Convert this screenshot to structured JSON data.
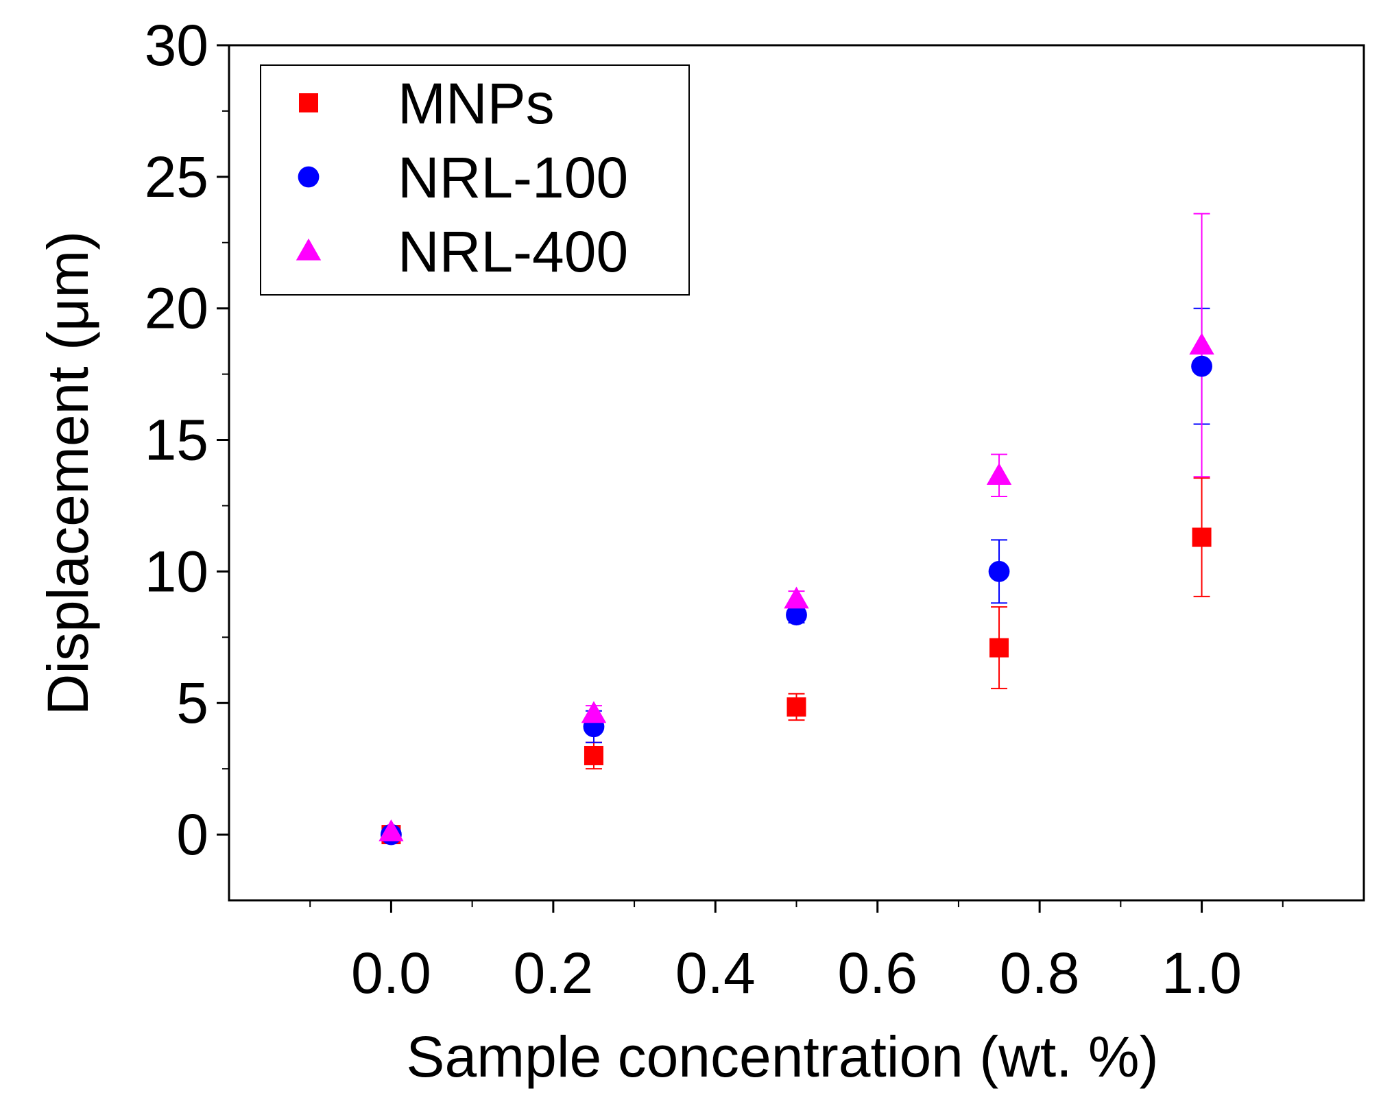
{
  "chart_data": {
    "type": "scatter",
    "title": "",
    "xlabel": "Sample concentration (wt. %)",
    "ylabel": "Displacement (μm)",
    "xlim": [
      -0.2,
      1.2
    ],
    "ylim": [
      -2.5,
      30
    ],
    "x_ticks": [
      0.0,
      0.2,
      0.4,
      0.6,
      0.8,
      1.0
    ],
    "x_tick_labels": [
      "0.0",
      "0.2",
      "0.4",
      "0.6",
      "0.8",
      "1.0"
    ],
    "y_ticks": [
      0,
      5,
      10,
      15,
      20,
      25,
      30
    ],
    "y_tick_labels": [
      "0",
      "5",
      "10",
      "15",
      "20",
      "25",
      "30"
    ],
    "grid": false,
    "legend_position": "top-left",
    "series": [
      {
        "name": "MNPs",
        "marker": "square",
        "color": "#ff0000",
        "x": [
          0.0,
          0.25,
          0.5,
          0.75,
          1.0
        ],
        "y": [
          0.0,
          3.0,
          4.85,
          7.1,
          11.3
        ],
        "err_low": [
          0.0,
          0.5,
          0.5,
          1.55,
          2.25
        ],
        "err_high": [
          0.0,
          0.5,
          0.5,
          1.55,
          2.25
        ]
      },
      {
        "name": "NRL-100",
        "marker": "circle",
        "color": "#0000ff",
        "x": [
          0.0,
          0.25,
          0.5,
          0.75,
          1.0
        ],
        "y": [
          0.0,
          4.1,
          8.35,
          10.0,
          17.8
        ],
        "err_low": [
          0.0,
          0.6,
          0.3,
          1.2,
          2.2
        ],
        "err_high": [
          0.0,
          0.6,
          0.3,
          1.2,
          2.2
        ]
      },
      {
        "name": "NRL-400",
        "marker": "triangle",
        "color": "#ff00ff",
        "x": [
          0.0,
          0.25,
          0.5,
          0.75,
          1.0
        ],
        "y": [
          0.1,
          4.6,
          8.95,
          13.65,
          18.6
        ],
        "err_low": [
          0.0,
          0.3,
          0.3,
          0.8,
          5.0
        ],
        "err_high": [
          0.0,
          0.3,
          0.3,
          0.8,
          5.0
        ]
      }
    ]
  }
}
